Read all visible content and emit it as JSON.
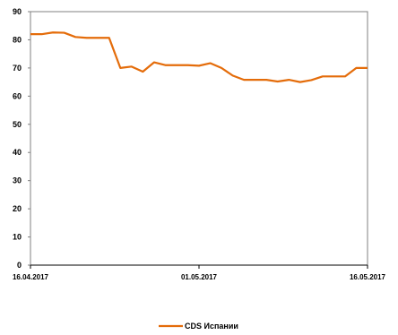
{
  "chart_data": {
    "type": "line",
    "title": "",
    "xlabel": "",
    "ylabel": "",
    "x_start": "16.04.2017",
    "x_end": "16.05.2017",
    "ylim": [
      0,
      90
    ],
    "yticks": [
      "0",
      "10",
      "20",
      "30",
      "40",
      "50",
      "60",
      "70",
      "80",
      "90"
    ],
    "xticks": [
      {
        "label": "16.04.2017",
        "day": 0
      },
      {
        "label": "01.05.2017",
        "day": 15
      },
      {
        "label": "16.05.2017",
        "day": 30
      }
    ],
    "grid": false,
    "legend_position": "bottom-center",
    "series": [
      {
        "name": "CDS Испании",
        "color": "#E46C0A",
        "x": [
          "16.04.2017",
          "17.04.2017",
          "18.04.2017",
          "19.04.2017",
          "20.04.2017",
          "21.04.2017",
          "22.04.2017",
          "23.04.2017",
          "24.04.2017",
          "25.04.2017",
          "26.04.2017",
          "27.04.2017",
          "28.04.2017",
          "29.04.2017",
          "30.04.2017",
          "01.05.2017",
          "02.05.2017",
          "03.05.2017",
          "04.05.2017",
          "05.05.2017",
          "06.05.2017",
          "07.05.2017",
          "08.05.2017",
          "09.05.2017",
          "10.05.2017",
          "11.05.2017",
          "12.05.2017",
          "13.05.2017",
          "14.05.2017",
          "15.05.2017",
          "16.05.2017"
        ],
        "values": [
          82.0,
          82.0,
          82.6,
          82.5,
          81.0,
          80.7,
          80.7,
          80.7,
          70.0,
          70.5,
          68.7,
          72.0,
          71.0,
          71.0,
          71.0,
          70.8,
          71.7,
          70.0,
          67.3,
          65.8,
          65.8,
          65.8,
          65.2,
          65.8,
          65.0,
          65.7,
          67.0,
          67.0,
          67.0,
          70.0,
          70.0
        ]
      }
    ]
  }
}
